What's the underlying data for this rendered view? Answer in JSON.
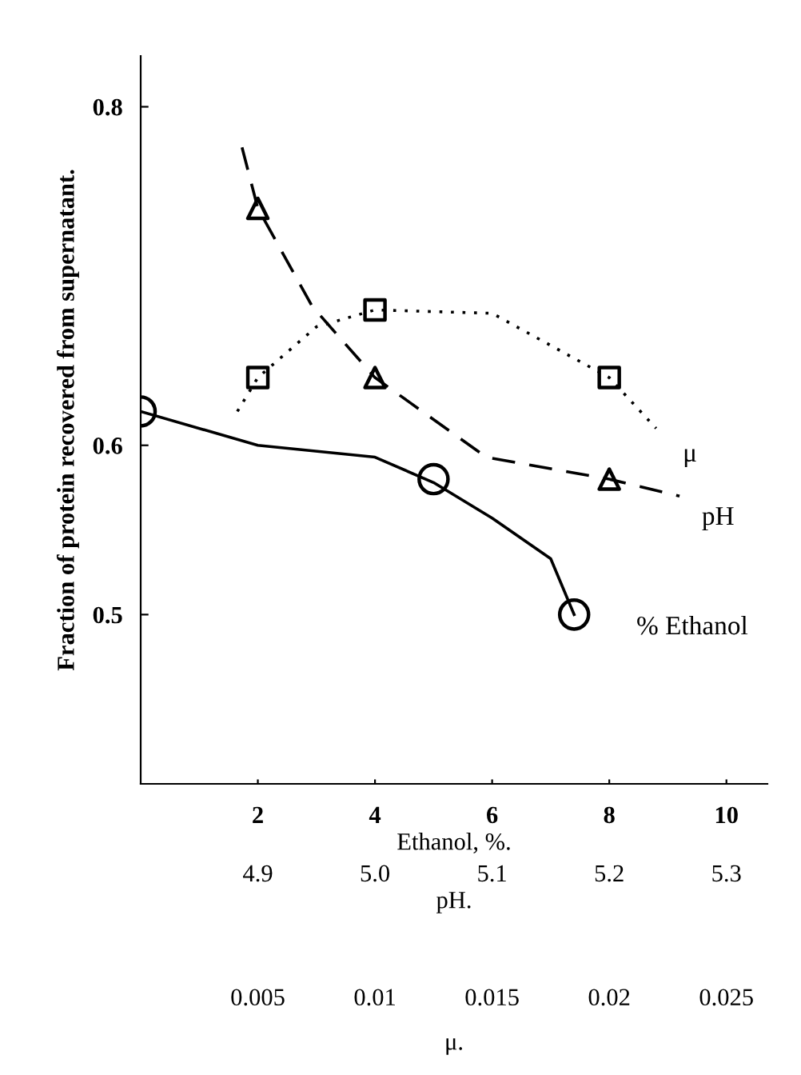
{
  "chart_data": {
    "type": "line",
    "ylabel": "Fraction of protein recovered from supernatant.",
    "xlabel": "Ethanol, %.",
    "x2label": "pH.",
    "annotations": [
      "0.005",
      "0.01",
      "0.015",
      "0.02",
      "0.025",
      "μ."
    ],
    "xlim": [
      0,
      10.7
    ],
    "xticks": [
      2,
      4,
      6,
      8,
      10
    ],
    "x2lim": [
      4.8,
      5.335
    ],
    "x2ticks": [
      4.9,
      {
        "value": 5.0,
        "label": "5.0"
      },
      5.1,
      5.2,
      5.3
    ],
    "ylim": [
      0.4,
      0.83
    ],
    "yticks": [
      0.5,
      0.6,
      0.8
    ],
    "grid": false,
    "legend": false,
    "series": [
      {
        "name": "% Ethanol",
        "line_style": "solid",
        "marker": "none",
        "color": "#000000",
        "x": [
          0,
          2,
          4,
          5,
          6,
          7,
          7.4
        ],
        "values": [
          0.62,
          0.6,
          0.593,
          0.578,
          0.557,
          0.533,
          0.5
        ]
      },
      {
        "name": "pH",
        "line_style": "dashed",
        "marker": "none",
        "color": "#000000",
        "x": [
          1.73,
          2,
          2.93,
          4,
          5.9,
          8,
          9.2
        ],
        "values": [
          0.776,
          0.74,
          0.682,
          0.64,
          0.593,
          0.58,
          0.57
        ]
      },
      {
        "name": "μ",
        "line_style": "dotted",
        "marker": "none",
        "color": "#000000",
        "x": [
          1.65,
          2,
          3,
          4,
          6,
          8,
          8.8
        ],
        "values": [
          0.62,
          0.64,
          0.67,
          0.68,
          0.678,
          0.64,
          0.61
        ]
      },
      {
        "type": "scatter",
        "marker": "circle",
        "color": "#000000",
        "x": [
          0,
          5,
          7.4
        ],
        "values": [
          0.62,
          0.58,
          0.5
        ]
      },
      {
        "type": "scatter",
        "marker": "triangle",
        "color": "#000000",
        "x": [
          2,
          4,
          8
        ],
        "values": [
          0.74,
          0.64,
          0.58
        ]
      },
      {
        "type": "scatter",
        "marker": "square",
        "color": "#000000",
        "x": [
          2,
          4,
          8
        ],
        "values": [
          0.64,
          0.68,
          0.64
        ]
      }
    ]
  }
}
